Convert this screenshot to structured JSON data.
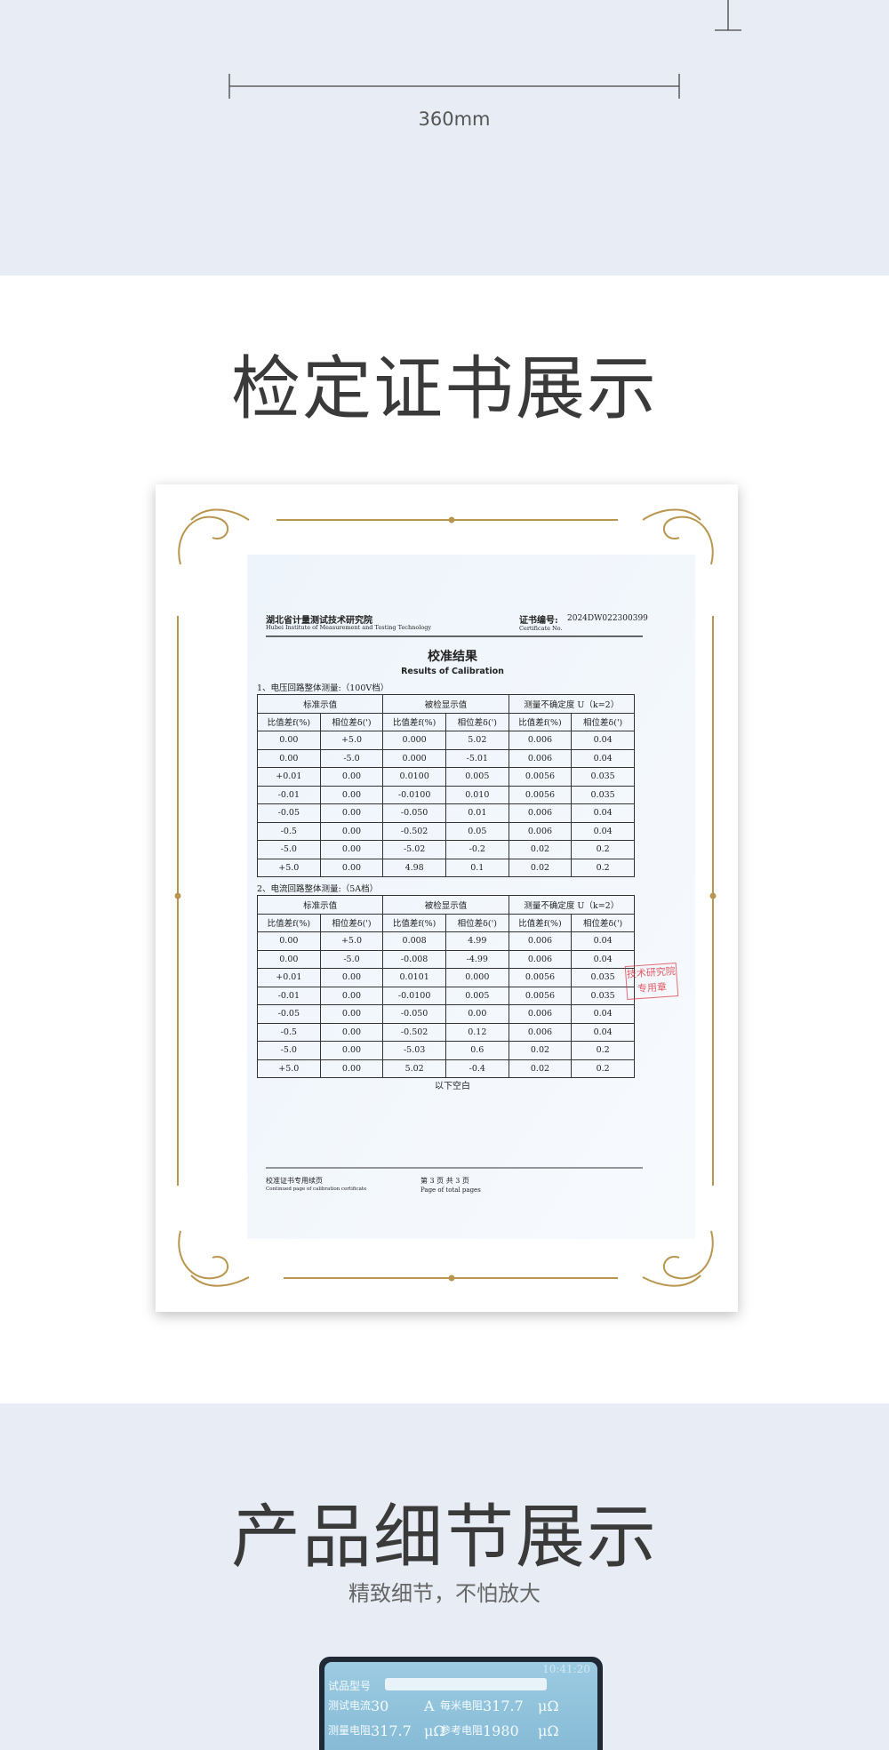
{
  "dimension": {
    "label": "360mm"
  },
  "certificate_section": {
    "title": "检定证书展示"
  },
  "certificate": {
    "institute": "湖北省计量测试技术研究院",
    "institute_en": "Hubei Institute of Measurement and Testing Technology",
    "cert_no_label": "证书编号:",
    "cert_no": "2024DW022300399",
    "cert_no_label_en": "Certificate No.",
    "heading": "校准结果",
    "heading_en": "Results of Calibration",
    "group_headers": [
      "标准示值",
      "被检显示值",
      "测量不确定度 U（k=2）"
    ],
    "sub_headers": [
      "比值差f(%)",
      "相位差δ(')",
      "比值差f(%)",
      "相位差δ(')",
      "比值差f(%)",
      "相位差δ(')"
    ],
    "tables": [
      {
        "caption": "1、电压回路整体测量:（100V档）",
        "rows": [
          [
            "0.00",
            "+5.0",
            "0.000",
            "5.02",
            "0.006",
            "0.04"
          ],
          [
            "0.00",
            "-5.0",
            "0.000",
            "-5.01",
            "0.006",
            "0.04"
          ],
          [
            "+0.01",
            "0.00",
            "0.0100",
            "0.005",
            "0.0056",
            "0.035"
          ],
          [
            "-0.01",
            "0.00",
            "-0.0100",
            "0.010",
            "0.0056",
            "0.035"
          ],
          [
            "-0.05",
            "0.00",
            "-0.050",
            "0.01",
            "0.006",
            "0.04"
          ],
          [
            "-0.5",
            "0.00",
            "-0.502",
            "0.05",
            "0.006",
            "0.04"
          ],
          [
            "-5.0",
            "0.00",
            "-5.02",
            "-0.2",
            "0.02",
            "0.2"
          ],
          [
            "+5.0",
            "0.00",
            "4.98",
            "0.1",
            "0.02",
            "0.2"
          ]
        ]
      },
      {
        "caption": "2、电流回路整体测量:（5A档）",
        "rows": [
          [
            "0.00",
            "+5.0",
            "0.008",
            "4.99",
            "0.006",
            "0.04"
          ],
          [
            "0.00",
            "-5.0",
            "-0.008",
            "-4.99",
            "0.006",
            "0.04"
          ],
          [
            "+0.01",
            "0.00",
            "0.0101",
            "0.000",
            "0.0056",
            "0.035"
          ],
          [
            "-0.01",
            "0.00",
            "-0.0100",
            "0.005",
            "0.0056",
            "0.035"
          ],
          [
            "-0.05",
            "0.00",
            "-0.050",
            "0.00",
            "0.006",
            "0.04"
          ],
          [
            "-0.5",
            "0.00",
            "-0.502",
            "0.12",
            "0.006",
            "0.04"
          ],
          [
            "-5.0",
            "0.00",
            "-5.03",
            "0.6",
            "0.02",
            "0.2"
          ],
          [
            "+5.0",
            "0.00",
            "5.02",
            "-0.4",
            "0.02",
            "0.2"
          ]
        ]
      }
    ],
    "blank_note": "以下空白",
    "stamp": [
      "技术研究院",
      "专用章"
    ],
    "footer_left": "校准证书专用续页",
    "footer_left_en": "Continued page of calibration certificate",
    "footer_page": "第 3 页 共 3 页",
    "footer_page_en": "Page of total pages"
  },
  "detail_section": {
    "title": "产品细节展示",
    "subtitle": "精致细节，不怕放大"
  },
  "device_screen": {
    "time": "10:41:20",
    "rows": [
      [
        "试品型号"
      ],
      [
        "测试电流",
        "30",
        "A",
        "每米电阻",
        "317.7",
        "μΩ"
      ],
      [
        "测量电阻",
        "317.7",
        "μΩ",
        "参考电阻",
        "1980",
        "μΩ"
      ]
    ]
  }
}
